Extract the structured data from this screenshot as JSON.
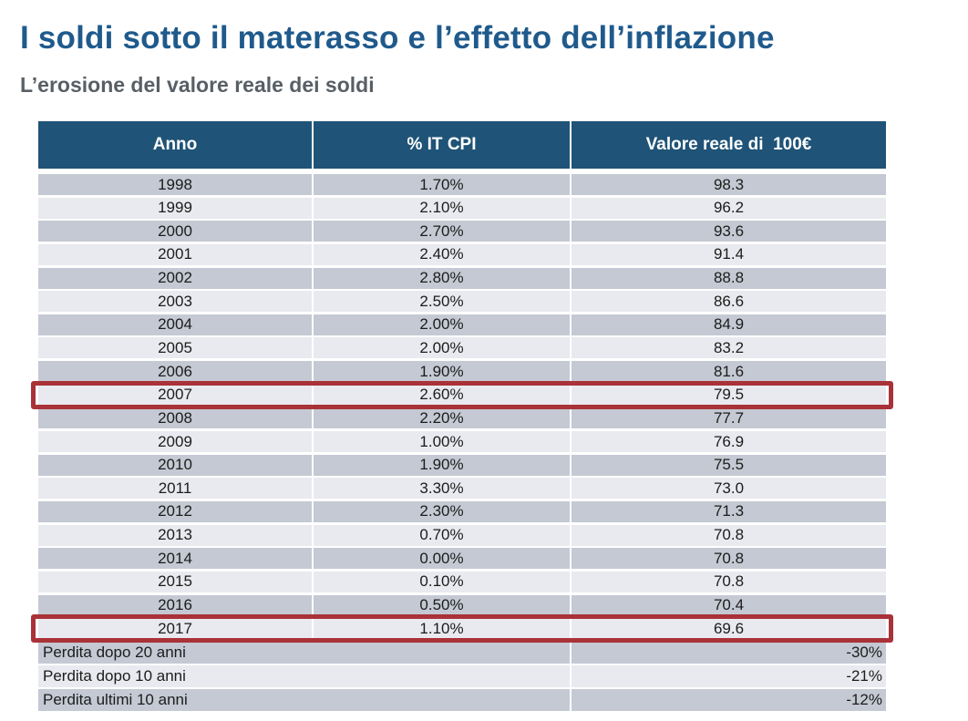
{
  "page": {
    "title": "I soldi sotto il materasso e l’effetto dell’inflazione",
    "subtitle": "L’erosione del valore reale dei soldi"
  },
  "colors": {
    "title_text": "#1f5a8c",
    "subtitle_text": "#595f66",
    "header_bg": "#1f5377",
    "header_text": "#ffffff",
    "row_dark": "#c4c9d3",
    "row_light": "#e9eaef",
    "highlight_border": "#a93238"
  },
  "table": {
    "columns": [
      "Anno",
      "% IT CPI",
      "Valore reale di  100€"
    ],
    "rows": [
      {
        "anno": "1998",
        "cpi": "1.70%",
        "valore": "98.3",
        "highlighted": false
      },
      {
        "anno": "1999",
        "cpi": "2.10%",
        "valore": "96.2",
        "highlighted": false
      },
      {
        "anno": "2000",
        "cpi": "2.70%",
        "valore": "93.6",
        "highlighted": false
      },
      {
        "anno": "2001",
        "cpi": "2.40%",
        "valore": "91.4",
        "highlighted": false
      },
      {
        "anno": "2002",
        "cpi": "2.80%",
        "valore": "88.8",
        "highlighted": false
      },
      {
        "anno": "2003",
        "cpi": "2.50%",
        "valore": "86.6",
        "highlighted": false
      },
      {
        "anno": "2004",
        "cpi": "2.00%",
        "valore": "84.9",
        "highlighted": false
      },
      {
        "anno": "2005",
        "cpi": "2.00%",
        "valore": "83.2",
        "highlighted": false
      },
      {
        "anno": "2006",
        "cpi": "1.90%",
        "valore": "81.6",
        "highlighted": false
      },
      {
        "anno": "2007",
        "cpi": "2.60%",
        "valore": "79.5",
        "highlighted": true
      },
      {
        "anno": "2008",
        "cpi": "2.20%",
        "valore": "77.7",
        "highlighted": false
      },
      {
        "anno": "2009",
        "cpi": "1.00%",
        "valore": "76.9",
        "highlighted": false
      },
      {
        "anno": "2010",
        "cpi": "1.90%",
        "valore": "75.5",
        "highlighted": false
      },
      {
        "anno": "2011",
        "cpi": "3.30%",
        "valore": "73.0",
        "highlighted": false
      },
      {
        "anno": "2012",
        "cpi": "2.30%",
        "valore": "71.3",
        "highlighted": false
      },
      {
        "anno": "2013",
        "cpi": "0.70%",
        "valore": "70.8",
        "highlighted": false
      },
      {
        "anno": "2014",
        "cpi": "0.00%",
        "valore": "70.8",
        "highlighted": false
      },
      {
        "anno": "2015",
        "cpi": "0.10%",
        "valore": "70.8",
        "highlighted": false
      },
      {
        "anno": "2016",
        "cpi": "0.50%",
        "valore": "70.4",
        "highlighted": false
      },
      {
        "anno": "2017",
        "cpi": "1.10%",
        "valore": "69.6",
        "highlighted": true
      }
    ],
    "summary_rows": [
      {
        "label": "Perdita dopo 20 anni",
        "value": "-30%"
      },
      {
        "label": "Perdita dopo 10 anni",
        "value": "-21%"
      },
      {
        "label": "Perdita ultimi 10 anni",
        "value": "-12%"
      }
    ]
  },
  "chart_data": {
    "type": "table",
    "title": "I soldi sotto il materasso e l’effetto dell’inflazione",
    "subtitle": "L’erosione del valore reale dei soldi",
    "columns": [
      "Anno",
      "% IT CPI",
      "Valore reale di 100€"
    ],
    "x": [
      1998,
      1999,
      2000,
      2001,
      2002,
      2003,
      2004,
      2005,
      2006,
      2007,
      2008,
      2009,
      2010,
      2011,
      2012,
      2013,
      2014,
      2015,
      2016,
      2017
    ],
    "series": [
      {
        "name": "% IT CPI",
        "values": [
          1.7,
          2.1,
          2.7,
          2.4,
          2.8,
          2.5,
          2.0,
          2.0,
          1.9,
          2.6,
          2.2,
          1.0,
          1.9,
          3.3,
          2.3,
          0.7,
          0.0,
          0.1,
          0.5,
          1.1
        ]
      },
      {
        "name": "Valore reale di 100€",
        "values": [
          98.3,
          96.2,
          93.6,
          91.4,
          88.8,
          86.6,
          84.9,
          83.2,
          81.6,
          79.5,
          77.7,
          76.9,
          75.5,
          73.0,
          71.3,
          70.8,
          70.8,
          70.8,
          70.4,
          69.6
        ]
      }
    ],
    "highlighted_years": [
      2007,
      2017
    ],
    "annotations": [
      {
        "label": "Perdita dopo 20 anni",
        "value": "-30%"
      },
      {
        "label": "Perdita dopo 10 anni",
        "value": "-21%"
      },
      {
        "label": "Perdita ultimi 10 anni",
        "value": "-12%"
      }
    ]
  }
}
